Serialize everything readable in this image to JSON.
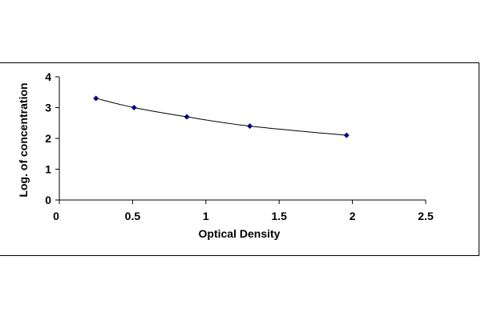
{
  "chart_data": {
    "type": "line",
    "title": "",
    "xlabel": "Optical Density",
    "ylabel": "Log. of concentration",
    "xlim": [
      0,
      2.5
    ],
    "ylim": [
      0,
      4
    ],
    "x_ticks": [
      0,
      0.5,
      1,
      1.5,
      2,
      2.5
    ],
    "x_tick_labels": [
      "0",
      "0.5",
      "1",
      "1.5",
      "2",
      "2.5"
    ],
    "y_ticks": [
      0,
      1,
      2,
      3,
      4
    ],
    "y_tick_labels": [
      "0",
      "1",
      "2",
      "3",
      "4"
    ],
    "grid": false,
    "series": [
      {
        "x": [
          0.25,
          0.51,
          0.87,
          1.3,
          1.96
        ],
        "y": [
          3.3,
          3.0,
          2.7,
          2.4,
          2.1
        ],
        "color": "#000080",
        "line_color": "#000000",
        "marker": "diamond"
      }
    ]
  }
}
